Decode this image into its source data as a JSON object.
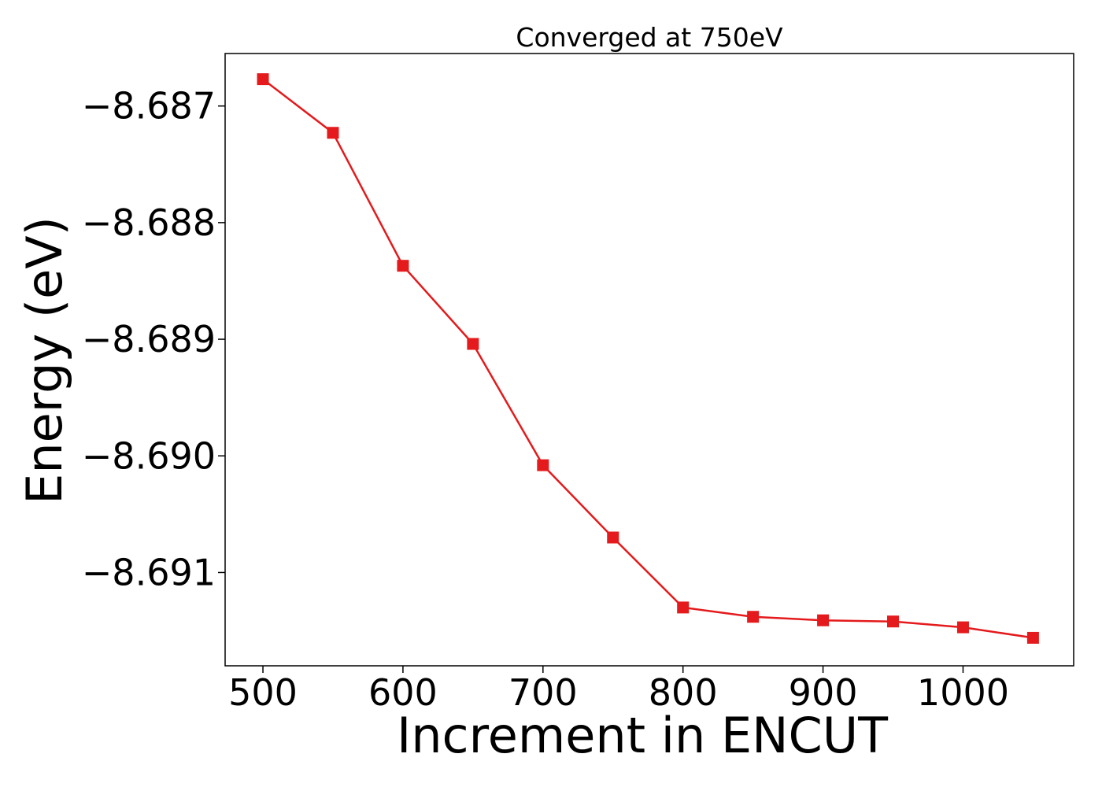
{
  "chart_data": {
    "type": "line",
    "title": "Converged at 750eV",
    "xlabel": "Increment in ENCUT",
    "ylabel": "Energy (eV)",
    "x": [
      500,
      550,
      600,
      650,
      700,
      750,
      800,
      850,
      900,
      950,
      1000,
      1050
    ],
    "series": [
      {
        "values": [
          -8.68677,
          -8.68723,
          -8.68837,
          -8.68904,
          -8.69008,
          -8.6907,
          -8.6913,
          -8.69138,
          -8.69141,
          -8.69142,
          -8.69147,
          -8.69156
        ],
        "color": "#e41a1c",
        "marker": "square"
      }
    ],
    "xlim": [
      473,
      1079
    ],
    "ylim": [
      -8.6918,
      -8.68655
    ],
    "xticks": [
      500,
      600,
      700,
      800,
      900,
      1000
    ],
    "xtick_labels": [
      "500",
      "600",
      "700",
      "800",
      "900",
      "1000"
    ],
    "yticks": [
      -8.687,
      -8.688,
      -8.689,
      -8.69,
      -8.691
    ],
    "ytick_labels": [
      "−8.687",
      "−8.688",
      "−8.689",
      "−8.690",
      "−8.691"
    ],
    "grid": false,
    "legend": "none"
  }
}
